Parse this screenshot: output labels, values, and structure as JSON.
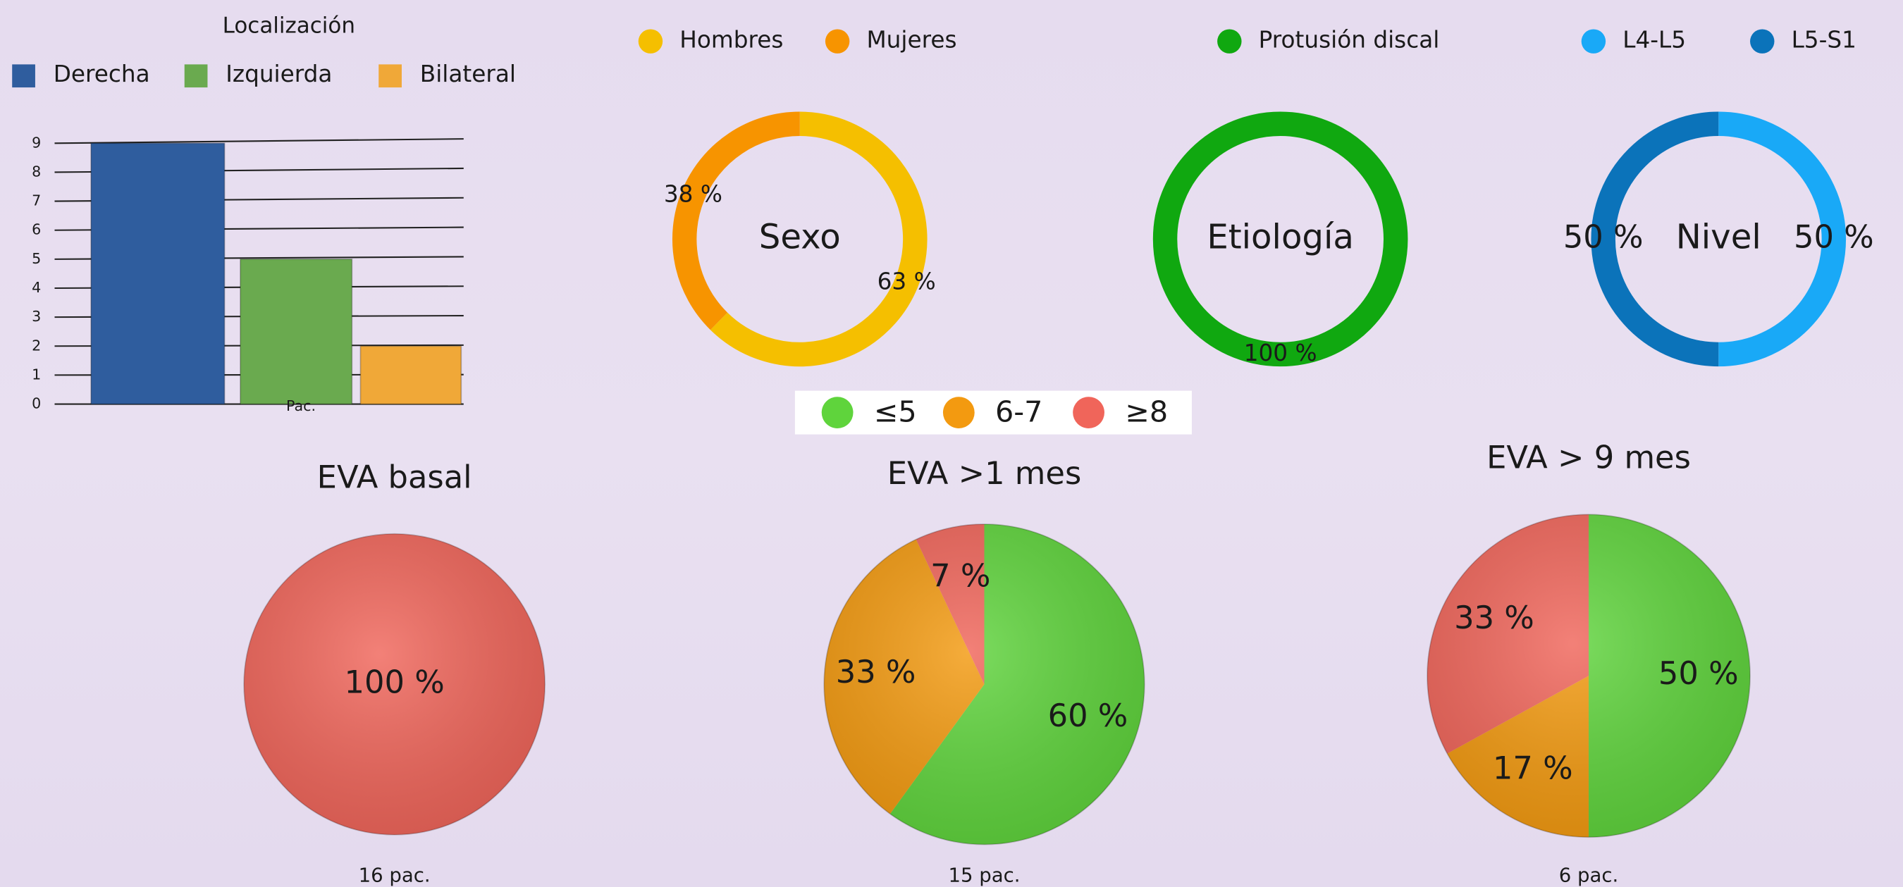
{
  "chart_data": [
    {
      "type": "bar",
      "title": "Localización",
      "categories": [
        "Pac."
      ],
      "series": [
        {
          "name": "Derecha",
          "color": "#2f5d9e",
          "values": [
            9
          ]
        },
        {
          "name": "Izquierda",
          "color": "#6aaa4f",
          "values": [
            5
          ]
        },
        {
          "name": "Bilateral",
          "color": "#f0a838",
          "values": [
            2
          ]
        }
      ],
      "ylim": [
        0,
        9
      ],
      "yticks": [
        0,
        1,
        2,
        3,
        4,
        5,
        6,
        7,
        8,
        9
      ],
      "grid": true
    },
    {
      "type": "donut",
      "title": "Sexo",
      "categories": [
        "Hombres",
        "Mujeres"
      ],
      "values": [
        63,
        38
      ],
      "value_labels": [
        "63 %",
        "38 %"
      ],
      "colors": [
        "#f5bf00",
        "#f79400"
      ]
    },
    {
      "type": "donut",
      "title": "Etiología",
      "categories": [
        "Protusión discal"
      ],
      "values": [
        100
      ],
      "value_labels": [
        "100 %"
      ],
      "colors": [
        "#10a810"
      ]
    },
    {
      "type": "donut",
      "title": "Nivel",
      "categories": [
        "L4-L5",
        "L5-S1"
      ],
      "values": [
        50,
        50
      ],
      "value_labels": [
        "50 %",
        "50 %"
      ],
      "colors": [
        "#19a9f7",
        "#0b73ba"
      ]
    },
    {
      "type": "pie",
      "title": "EVA basal",
      "values": [
        0,
        0,
        100
      ],
      "value_labels": [
        null,
        null,
        "100 %"
      ],
      "note": "16 pac."
    },
    {
      "type": "pie",
      "title": "EVA >1 mes",
      "values": [
        60,
        33,
        7
      ],
      "value_labels": [
        "60 %",
        "33 %",
        "7 %"
      ],
      "note": "15 pac."
    },
    {
      "type": "pie",
      "title": "EVA > 9 mes",
      "values": [
        50,
        17,
        33
      ],
      "value_labels": [
        "50 %",
        "17 %",
        "33 %"
      ],
      "note": "6 pac."
    }
  ],
  "pie_legend": {
    "categories": [
      "≤5",
      "6-7",
      "≥8"
    ],
    "colors": [
      "#5fd43c",
      "#f39a10",
      "#f0655a"
    ]
  }
}
